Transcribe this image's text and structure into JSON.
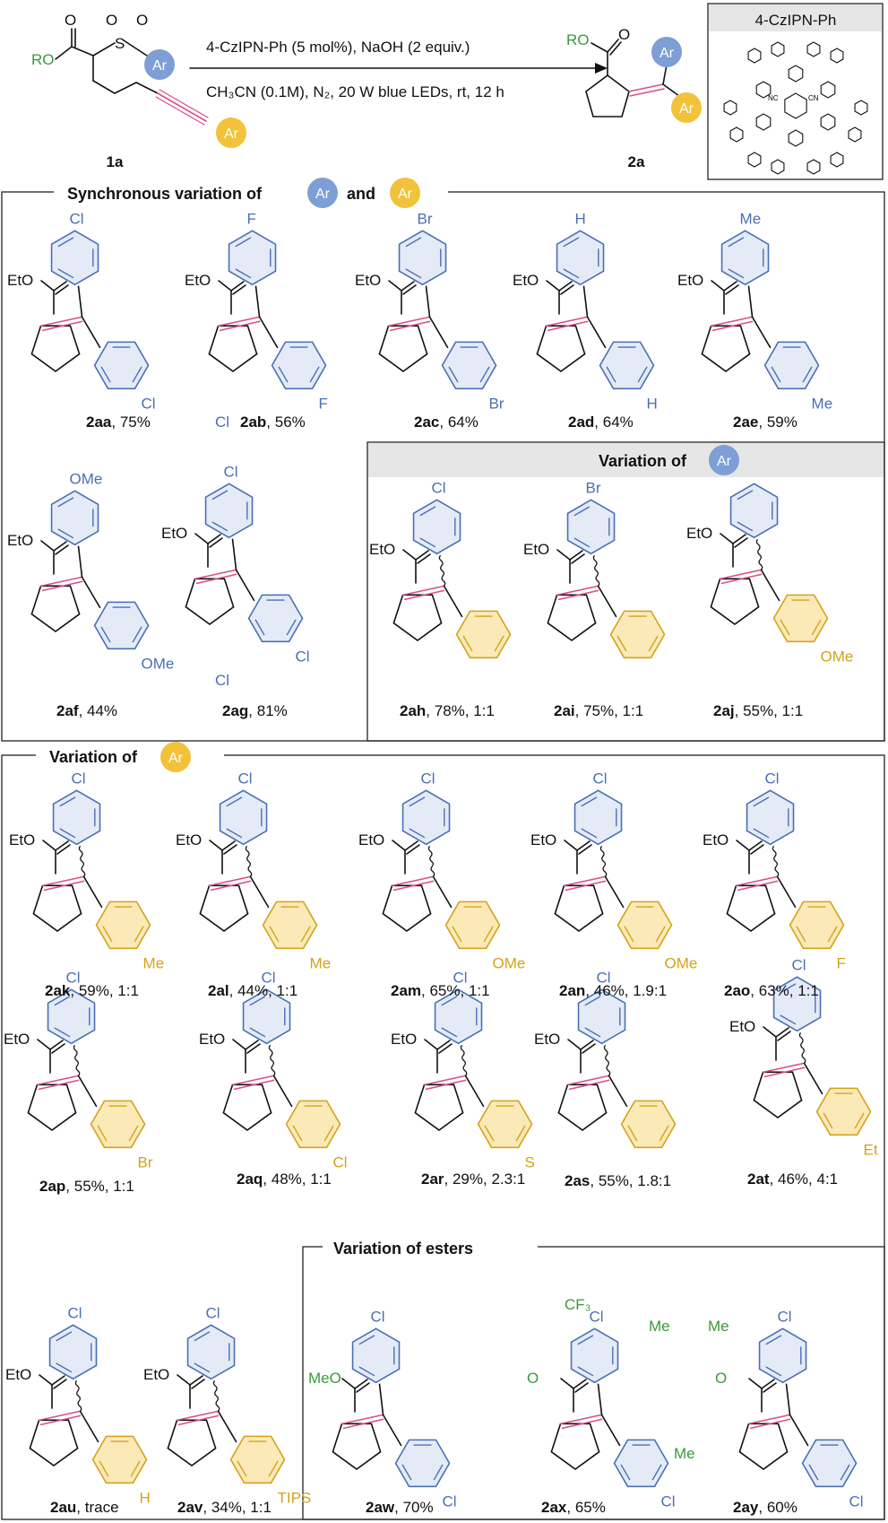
{
  "colors": {
    "blue_ar": "#7e9ed6",
    "yellow_ar": "#f2c23a",
    "blue_ring": "#4a6fb5",
    "blue_fill": "#e4ebf7",
    "yellow_ring": "#d4a21a",
    "yellow_fill": "#fbe9b8",
    "green": "#3a9a3a",
    "pink_bond": "#d94f8a",
    "header_fill": "#e6e6e6"
  },
  "icons": [
    "ar-badge-blue-icon",
    "ar-badge-yellow-icon",
    "reaction-arrow-icon"
  ],
  "reaction": {
    "substrate_label": "1a",
    "product_label": "2a",
    "conditions_line1": "4-CzIPN-Ph (5 mol%), NaOH (2 equiv.)",
    "conditions_line2": "CH₃CN (0.1M), N₂, 20 W blue LEDs, rt, 12 h",
    "catalyst_title": "4-CzIPN-Ph",
    "ro": "RO",
    "so2": "S",
    "o": "O",
    "ar": "Ar",
    "cn": "NC",
    "cn2": "CN",
    "n": "N"
  },
  "sections": {
    "sync": {
      "title_a": "Synchronous variation of",
      "title_b": "and"
    },
    "var_ar1": {
      "title": "Variation of"
    },
    "var_ar2": {
      "title": "Variation of"
    },
    "esters": {
      "title": "Variation of esters"
    }
  },
  "compounds": [
    {
      "id": "2aa",
      "yield": ", 75%",
      "top": "Cl",
      "bot": "Cl",
      "ester": "EtO"
    },
    {
      "id": "2ab",
      "yield": ", 56%",
      "top": "F",
      "bot": "F",
      "ester": "EtO"
    },
    {
      "id": "2ac",
      "yield": ", 64%",
      "top": "Br",
      "bot": "Br",
      "ester": "EtO"
    },
    {
      "id": "2ad",
      "yield": ", 64%",
      "top": "H",
      "bot": "H",
      "ester": "EtO"
    },
    {
      "id": "2ae",
      "yield": ", 59%",
      "top": "Me",
      "bot": "Me",
      "ester": "EtO"
    },
    {
      "id": "2af",
      "yield": ", 44%",
      "top": "OMe",
      "bot": "OMe",
      "ester": "EtO"
    },
    {
      "id": "2ag",
      "yield": ", 81%",
      "top": "Cl",
      "bot": "Cl",
      "top2": "Cl",
      "bot2": "Cl",
      "ester": "EtO"
    },
    {
      "id": "2ah",
      "yield": ", 78%, 1:1",
      "top": "Cl",
      "bot": "",
      "ester": "EtO"
    },
    {
      "id": "2ai",
      "yield": ", 75%, 1:1",
      "top": "Br",
      "bot": "",
      "ester": "EtO"
    },
    {
      "id": "2aj",
      "yield": ", 55%, 1:1",
      "top": "",
      "bot": "OMe",
      "ester": "EtO"
    },
    {
      "id": "2ak",
      "yield": ", 59%, 1:1",
      "top": "Cl",
      "bot": "Me",
      "ester": "EtO"
    },
    {
      "id": "2al",
      "yield": ", 44%, 1:1",
      "top": "Cl",
      "bot": "Me",
      "ester": "EtO"
    },
    {
      "id": "2am",
      "yield": ", 65%, 1:1",
      "top": "Cl",
      "bot": "OMe",
      "ester": "EtO"
    },
    {
      "id": "2an",
      "yield": ", 46%, 1.9:1",
      "top": "Cl",
      "bot": "OMe",
      "ester": "EtO"
    },
    {
      "id": "2ao",
      "yield": ", 63%, 1:1",
      "top": "Cl",
      "bot": "F",
      "ester": "EtO"
    },
    {
      "id": "2ap",
      "yield": ", 55%, 1:1",
      "top": "Cl",
      "bot": "Br",
      "ester": "EtO"
    },
    {
      "id": "2aq",
      "yield": ", 48%, 1:1",
      "top": "Cl",
      "bot": "Cl",
      "ester": "EtO"
    },
    {
      "id": "2ar",
      "yield": ", 29%, 2.3:1",
      "top": "Cl",
      "bot": "S",
      "ester": "EtO"
    },
    {
      "id": "2as",
      "yield": ", 55%, 1.8:1",
      "top": "Cl",
      "bot": "",
      "ester": "EtO"
    },
    {
      "id": "2at",
      "yield": ", 46%, 4:1",
      "top": "Cl",
      "bot": "Et",
      "ester": "EtO"
    },
    {
      "id": "2au",
      "yield": ", trace",
      "top": "Cl",
      "bot": "H",
      "ester": "EtO"
    },
    {
      "id": "2av",
      "yield": ", 34%, 1:1",
      "top": "Cl",
      "bot": "TIPS",
      "ester": "EtO"
    },
    {
      "id": "2aw",
      "yield": ", 70%",
      "top": "Cl",
      "bot": "Cl",
      "ester": "MeO"
    },
    {
      "id": "2ax",
      "yield": ", 65%",
      "top": "Cl",
      "bot": "Cl",
      "ester": "O",
      "cf3": "CF₃"
    },
    {
      "id": "2ay",
      "yield": ", 60%",
      "top": "Cl",
      "bot": "Cl",
      "ester": "O",
      "me1": "Me",
      "me2": "Me",
      "me3": "Me"
    }
  ]
}
